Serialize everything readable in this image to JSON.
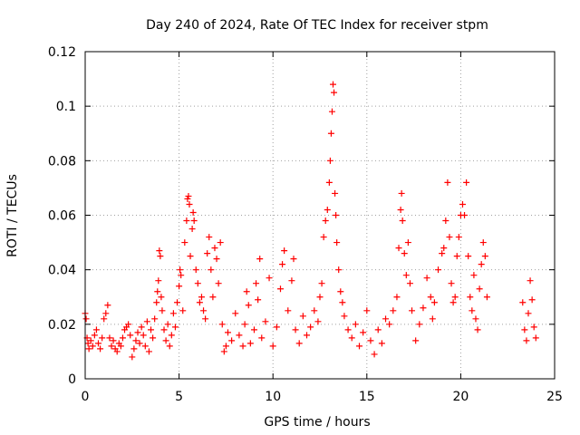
{
  "chart_data": {
    "type": "scatter",
    "title": "Day 240 of 2024, Rate Of TEC Index for receiver stpm",
    "xlabel": "GPS time / hours",
    "ylabel": "ROTI / TECUs",
    "xlim": [
      0,
      25
    ],
    "ylim": [
      0,
      0.12
    ],
    "xticks": [
      0,
      5,
      10,
      15,
      20,
      25
    ],
    "xtick_labels": [
      "0",
      "5",
      "10",
      "15",
      "20",
      "25"
    ],
    "yticks": [
      0,
      0.02,
      0.04,
      0.06,
      0.08,
      0.1,
      0.12
    ],
    "ytick_labels": [
      "0",
      "0.02",
      "0.04",
      "0.06",
      "0.08",
      "0.1",
      "0.12"
    ],
    "grid": true,
    "marker": "+",
    "color": "#ff0000",
    "series": [
      {
        "name": "ROTI",
        "points": [
          [
            0.0,
            0.024
          ],
          [
            0.05,
            0.022
          ],
          [
            0.1,
            0.015
          ],
          [
            0.15,
            0.013
          ],
          [
            0.2,
            0.011
          ],
          [
            0.3,
            0.014
          ],
          [
            0.4,
            0.012
          ],
          [
            0.5,
            0.016
          ],
          [
            0.6,
            0.018
          ],
          [
            0.7,
            0.013
          ],
          [
            0.8,
            0.011
          ],
          [
            0.9,
            0.015
          ],
          [
            1.0,
            0.022
          ],
          [
            1.1,
            0.024
          ],
          [
            1.2,
            0.027
          ],
          [
            1.3,
            0.015
          ],
          [
            1.4,
            0.012
          ],
          [
            1.5,
            0.014
          ],
          [
            1.6,
            0.011
          ],
          [
            1.7,
            0.01
          ],
          [
            1.8,
            0.013
          ],
          [
            1.9,
            0.012
          ],
          [
            2.0,
            0.015
          ],
          [
            2.1,
            0.018
          ],
          [
            2.2,
            0.019
          ],
          [
            2.3,
            0.02
          ],
          [
            2.4,
            0.016
          ],
          [
            2.5,
            0.008
          ],
          [
            2.6,
            0.011
          ],
          [
            2.7,
            0.014
          ],
          [
            2.8,
            0.017
          ],
          [
            2.9,
            0.013
          ],
          [
            3.0,
            0.019
          ],
          [
            3.1,
            0.016
          ],
          [
            3.2,
            0.012
          ],
          [
            3.3,
            0.021
          ],
          [
            3.4,
            0.01
          ],
          [
            3.5,
            0.018
          ],
          [
            3.6,
            0.015
          ],
          [
            3.7,
            0.022
          ],
          [
            3.8,
            0.028
          ],
          [
            3.85,
            0.032
          ],
          [
            3.9,
            0.036
          ],
          [
            3.95,
            0.047
          ],
          [
            4.0,
            0.045
          ],
          [
            4.05,
            0.03
          ],
          [
            4.1,
            0.025
          ],
          [
            4.2,
            0.018
          ],
          [
            4.3,
            0.014
          ],
          [
            4.4,
            0.02
          ],
          [
            4.5,
            0.012
          ],
          [
            4.6,
            0.016
          ],
          [
            4.7,
            0.024
          ],
          [
            4.8,
            0.019
          ],
          [
            4.9,
            0.028
          ],
          [
            5.0,
            0.034
          ],
          [
            5.05,
            0.04
          ],
          [
            5.1,
            0.038
          ],
          [
            5.2,
            0.025
          ],
          [
            5.3,
            0.05
          ],
          [
            5.4,
            0.058
          ],
          [
            5.45,
            0.066
          ],
          [
            5.5,
            0.067
          ],
          [
            5.55,
            0.064
          ],
          [
            5.6,
            0.045
          ],
          [
            5.7,
            0.055
          ],
          [
            5.75,
            0.061
          ],
          [
            5.8,
            0.058
          ],
          [
            5.9,
            0.04
          ],
          [
            6.0,
            0.035
          ],
          [
            6.1,
            0.028
          ],
          [
            6.2,
            0.03
          ],
          [
            6.3,
            0.025
          ],
          [
            6.4,
            0.022
          ],
          [
            6.5,
            0.046
          ],
          [
            6.6,
            0.052
          ],
          [
            6.7,
            0.04
          ],
          [
            6.8,
            0.03
          ],
          [
            6.9,
            0.048
          ],
          [
            7.0,
            0.044
          ],
          [
            7.1,
            0.035
          ],
          [
            7.2,
            0.05
          ],
          [
            7.3,
            0.02
          ],
          [
            7.4,
            0.01
          ],
          [
            7.5,
            0.012
          ],
          [
            7.6,
            0.017
          ],
          [
            7.8,
            0.014
          ],
          [
            8.0,
            0.024
          ],
          [
            8.2,
            0.016
          ],
          [
            8.4,
            0.012
          ],
          [
            8.5,
            0.02
          ],
          [
            8.6,
            0.032
          ],
          [
            8.7,
            0.027
          ],
          [
            8.8,
            0.013
          ],
          [
            9.0,
            0.018
          ],
          [
            9.1,
            0.035
          ],
          [
            9.2,
            0.029
          ],
          [
            9.3,
            0.044
          ],
          [
            9.4,
            0.015
          ],
          [
            9.6,
            0.021
          ],
          [
            9.8,
            0.037
          ],
          [
            10.0,
            0.012
          ],
          [
            10.2,
            0.019
          ],
          [
            10.4,
            0.033
          ],
          [
            10.5,
            0.042
          ],
          [
            10.6,
            0.047
          ],
          [
            10.8,
            0.025
          ],
          [
            11.0,
            0.036
          ],
          [
            11.1,
            0.044
          ],
          [
            11.2,
            0.018
          ],
          [
            11.4,
            0.013
          ],
          [
            11.6,
            0.023
          ],
          [
            11.8,
            0.016
          ],
          [
            12.0,
            0.019
          ],
          [
            12.2,
            0.025
          ],
          [
            12.4,
            0.021
          ],
          [
            12.5,
            0.03
          ],
          [
            12.6,
            0.035
          ],
          [
            12.7,
            0.052
          ],
          [
            12.8,
            0.058
          ],
          [
            12.9,
            0.062
          ],
          [
            13.0,
            0.072
          ],
          [
            13.05,
            0.08
          ],
          [
            13.1,
            0.09
          ],
          [
            13.15,
            0.098
          ],
          [
            13.2,
            0.108
          ],
          [
            13.25,
            0.105
          ],
          [
            13.3,
            0.068
          ],
          [
            13.35,
            0.06
          ],
          [
            13.4,
            0.05
          ],
          [
            13.5,
            0.04
          ],
          [
            13.6,
            0.032
          ],
          [
            13.7,
            0.028
          ],
          [
            13.8,
            0.023
          ],
          [
            14.0,
            0.018
          ],
          [
            14.2,
            0.015
          ],
          [
            14.4,
            0.02
          ],
          [
            14.6,
            0.012
          ],
          [
            14.8,
            0.017
          ],
          [
            15.0,
            0.025
          ],
          [
            15.2,
            0.014
          ],
          [
            15.4,
            0.009
          ],
          [
            15.6,
            0.018
          ],
          [
            15.8,
            0.013
          ],
          [
            16.0,
            0.022
          ],
          [
            16.2,
            0.02
          ],
          [
            16.4,
            0.025
          ],
          [
            16.6,
            0.03
          ],
          [
            16.7,
            0.048
          ],
          [
            16.8,
            0.062
          ],
          [
            16.85,
            0.068
          ],
          [
            16.9,
            0.058
          ],
          [
            17.0,
            0.046
          ],
          [
            17.1,
            0.038
          ],
          [
            17.2,
            0.05
          ],
          [
            17.3,
            0.035
          ],
          [
            17.4,
            0.025
          ],
          [
            17.6,
            0.014
          ],
          [
            17.8,
            0.02
          ],
          [
            18.0,
            0.026
          ],
          [
            18.2,
            0.037
          ],
          [
            18.4,
            0.03
          ],
          [
            18.5,
            0.022
          ],
          [
            18.6,
            0.028
          ],
          [
            18.8,
            0.04
          ],
          [
            19.0,
            0.046
          ],
          [
            19.1,
            0.048
          ],
          [
            19.2,
            0.058
          ],
          [
            19.3,
            0.072
          ],
          [
            19.4,
            0.052
          ],
          [
            19.5,
            0.035
          ],
          [
            19.6,
            0.028
          ],
          [
            19.7,
            0.03
          ],
          [
            19.8,
            0.045
          ],
          [
            19.9,
            0.052
          ],
          [
            20.0,
            0.06
          ],
          [
            20.1,
            0.064
          ],
          [
            20.2,
            0.06
          ],
          [
            20.3,
            0.072
          ],
          [
            20.4,
            0.045
          ],
          [
            20.5,
            0.03
          ],
          [
            20.6,
            0.025
          ],
          [
            20.7,
            0.038
          ],
          [
            20.8,
            0.022
          ],
          [
            20.9,
            0.018
          ],
          [
            21.0,
            0.033
          ],
          [
            21.1,
            0.042
          ],
          [
            21.2,
            0.05
          ],
          [
            21.3,
            0.045
          ],
          [
            21.4,
            0.03
          ],
          [
            23.3,
            0.028
          ],
          [
            23.4,
            0.018
          ],
          [
            23.5,
            0.014
          ],
          [
            23.6,
            0.024
          ],
          [
            23.7,
            0.036
          ],
          [
            23.8,
            0.029
          ],
          [
            23.9,
            0.019
          ],
          [
            24.0,
            0.015
          ]
        ]
      }
    ]
  }
}
